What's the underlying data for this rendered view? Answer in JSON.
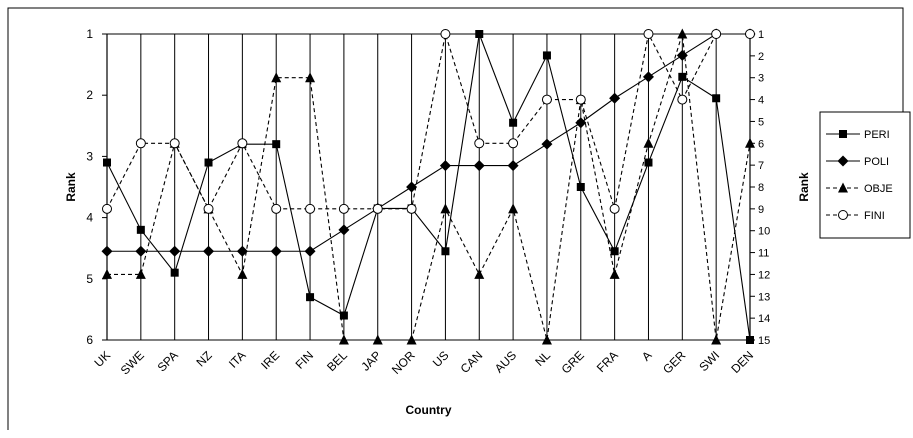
{
  "chart_data": {
    "type": "line",
    "xlabel": "Country",
    "ylabel_left": "Rank",
    "ylabel_right": "Rank",
    "categories": [
      "UK",
      "SWE",
      "SPA",
      "NZ",
      "ITA",
      "IRE",
      "FIN",
      "BEL",
      "JAP",
      "NOR",
      "US",
      "CAN",
      "AUS",
      "NL",
      "GRE",
      "FRA",
      "A",
      "GER",
      "SWI",
      "DEN"
    ],
    "y_left": {
      "min": 1,
      "max": 6,
      "inverted": true,
      "ticks": [
        "1",
        "2",
        "3",
        "4",
        "5",
        "6"
      ]
    },
    "y_right": {
      "min": 1,
      "max": 15,
      "inverted": true,
      "ticks": [
        "1",
        "2",
        "3",
        "4",
        "5",
        "6",
        "7",
        "8",
        "9",
        "10",
        "11",
        "12",
        "13",
        "14",
        "15"
      ]
    },
    "grid": "vertical lines at categories",
    "legend_position": "right",
    "series": [
      {
        "name": "PERI",
        "axis": "left",
        "marker": "filled-square",
        "line": "solid",
        "values": [
          3.1,
          4.2,
          4.9,
          3.1,
          2.8,
          2.8,
          5.3,
          5.6,
          3.85,
          3.85,
          4.55,
          1.0,
          2.45,
          1.35,
          3.5,
          4.55,
          3.1,
          1.7,
          2.05,
          6.0
        ]
      },
      {
        "name": "POLI",
        "axis": "left",
        "marker": "filled-diamond",
        "line": "solid",
        "values": [
          4.55,
          4.55,
          4.55,
          4.55,
          4.55,
          4.55,
          4.55,
          4.2,
          3.85,
          3.5,
          3.15,
          3.15,
          3.15,
          2.8,
          2.45,
          2.05,
          1.7,
          1.35,
          1.0,
          1.0
        ]
      },
      {
        "name": "OBJE",
        "axis": "right",
        "marker": "filled-triangle",
        "line": "dashed",
        "values": [
          12,
          12,
          6,
          9,
          12,
          3,
          3,
          15,
          15,
          15,
          9,
          12,
          9,
          15,
          4,
          12,
          6,
          1,
          15,
          6
        ]
      },
      {
        "name": "FINI",
        "axis": "right",
        "marker": "open-circle",
        "line": "dashed",
        "values": [
          9,
          6,
          6,
          9,
          6,
          9,
          9,
          9,
          9,
          9,
          1,
          6,
          6,
          4,
          4,
          9,
          1,
          4,
          1,
          1
        ]
      }
    ]
  }
}
